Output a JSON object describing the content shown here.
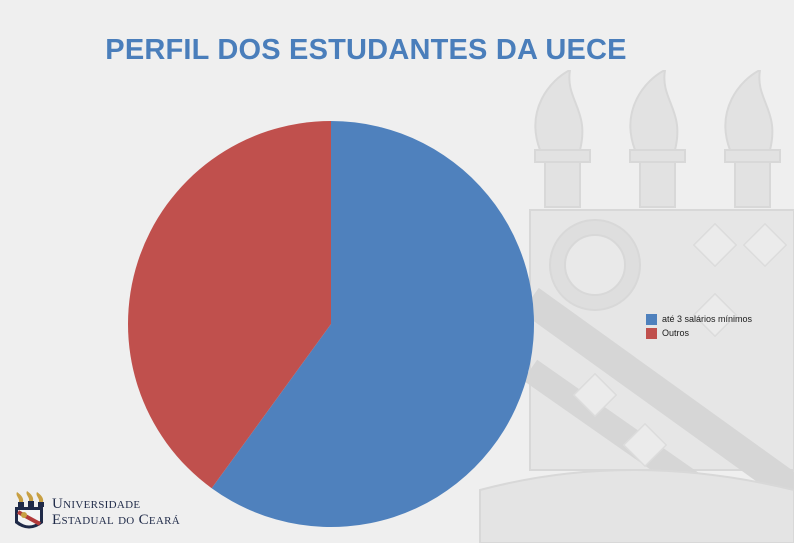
{
  "title": "PERFIL DOS ESTUDANTES DA UECE",
  "chart_data": {
    "type": "pie",
    "title": "",
    "categories": [
      "até 3 salários mínimos",
      "Outros"
    ],
    "values": [
      60,
      40
    ],
    "colors": [
      "#4f81bd",
      "#c0504d"
    ],
    "start_angle_deg": 0,
    "direction": "clockwise",
    "legend_position": "right",
    "data_labels": [
      "",
      ""
    ]
  },
  "logo": {
    "line1": "Universidade",
    "line2": "Estadual do Ceará"
  }
}
